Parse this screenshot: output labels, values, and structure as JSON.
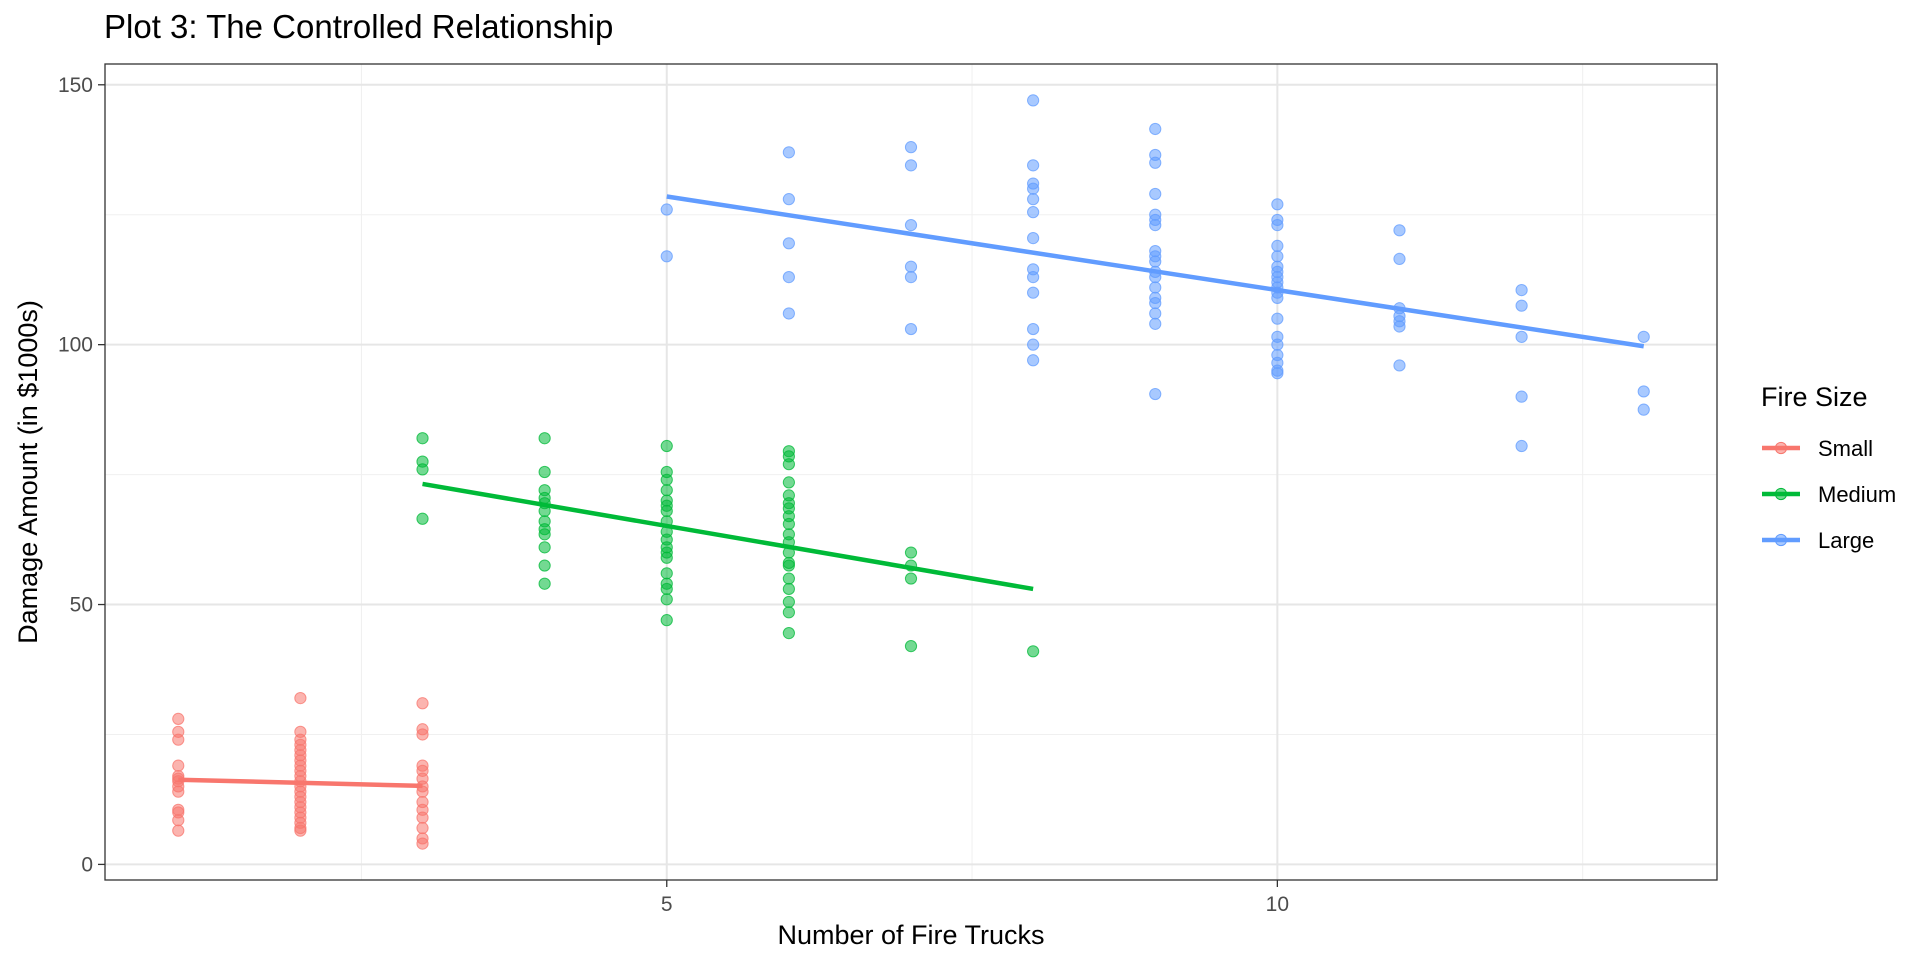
{
  "chart_data": {
    "type": "scatter",
    "title": "Plot 3: The Controlled Relationship",
    "xlabel": "Number of Fire Trucks",
    "ylabel": "Damage Amount (in $1000s)",
    "xlim": [
      0.4,
      13.6
    ],
    "ylim": [
      -3,
      154
    ],
    "x_ticks": [
      5,
      10
    ],
    "y_ticks": [
      0,
      50,
      100,
      150
    ],
    "grid": true,
    "legend": {
      "title": "Fire Size",
      "position": "right"
    },
    "series": [
      {
        "name": "Small",
        "color": "#F8766D",
        "points": [
          [
            1,
            28
          ],
          [
            1,
            25.5
          ],
          [
            1,
            24
          ],
          [
            1,
            19
          ],
          [
            1,
            17
          ],
          [
            1,
            16.5
          ],
          [
            1,
            16
          ],
          [
            1,
            15
          ],
          [
            1,
            14
          ],
          [
            1,
            10.5
          ],
          [
            1,
            10
          ],
          [
            1,
            8.5
          ],
          [
            1,
            6.5
          ],
          [
            2,
            32
          ],
          [
            2,
            25.5
          ],
          [
            2,
            24
          ],
          [
            2,
            23
          ],
          [
            2,
            22
          ],
          [
            2,
            21
          ],
          [
            2,
            20
          ],
          [
            2,
            19
          ],
          [
            2,
            18
          ],
          [
            2,
            17
          ],
          [
            2,
            16
          ],
          [
            2,
            15
          ],
          [
            2,
            14
          ],
          [
            2,
            13
          ],
          [
            2,
            12
          ],
          [
            2,
            11
          ],
          [
            2,
            10
          ],
          [
            2,
            9
          ],
          [
            2,
            8
          ],
          [
            2,
            7
          ],
          [
            2,
            6.5
          ],
          [
            3,
            31
          ],
          [
            3,
            26
          ],
          [
            3,
            25
          ],
          [
            3,
            19
          ],
          [
            3,
            18
          ],
          [
            3,
            16.5
          ],
          [
            3,
            15
          ],
          [
            3,
            14
          ],
          [
            3,
            12
          ],
          [
            3,
            10.5
          ],
          [
            3,
            9
          ],
          [
            3,
            7
          ],
          [
            3,
            5
          ],
          [
            3,
            4
          ]
        ],
        "fit": [
          [
            1,
            16.3
          ],
          [
            3,
            15.1
          ]
        ]
      },
      {
        "name": "Medium",
        "color": "#00BA38",
        "points": [
          [
            3,
            82
          ],
          [
            3,
            77.5
          ],
          [
            3,
            76
          ],
          [
            3,
            66.5
          ],
          [
            4,
            82
          ],
          [
            4,
            75.5
          ],
          [
            4,
            72
          ],
          [
            4,
            70.5
          ],
          [
            4,
            69.5
          ],
          [
            4,
            68
          ],
          [
            4,
            66
          ],
          [
            4,
            64.5
          ],
          [
            4,
            63.5
          ],
          [
            4,
            61
          ],
          [
            4,
            57.5
          ],
          [
            4,
            54
          ],
          [
            5,
            80.5
          ],
          [
            5,
            75.5
          ],
          [
            5,
            74
          ],
          [
            5,
            72
          ],
          [
            5,
            70
          ],
          [
            5,
            69
          ],
          [
            5,
            68
          ],
          [
            5,
            66
          ],
          [
            5,
            64
          ],
          [
            5,
            62.5
          ],
          [
            5,
            61
          ],
          [
            5,
            60
          ],
          [
            5,
            59
          ],
          [
            5,
            56
          ],
          [
            5,
            54
          ],
          [
            5,
            53
          ],
          [
            5,
            51
          ],
          [
            5,
            47
          ],
          [
            6,
            79.5
          ],
          [
            6,
            78.5
          ],
          [
            6,
            77
          ],
          [
            6,
            73.5
          ],
          [
            6,
            71
          ],
          [
            6,
            69.5
          ],
          [
            6,
            68.5
          ],
          [
            6,
            67
          ],
          [
            6,
            65.5
          ],
          [
            6,
            63.5
          ],
          [
            6,
            62
          ],
          [
            6,
            60
          ],
          [
            6,
            58
          ],
          [
            6,
            57.5
          ],
          [
            6,
            55
          ],
          [
            6,
            53
          ],
          [
            6,
            50.5
          ],
          [
            6,
            48.5
          ],
          [
            6,
            44.5
          ],
          [
            7,
            60
          ],
          [
            7,
            57.5
          ],
          [
            7,
            55
          ],
          [
            7,
            42
          ],
          [
            8,
            41
          ]
        ],
        "fit": [
          [
            3,
            73.2
          ],
          [
            8,
            53
          ]
        ]
      },
      {
        "name": "Large",
        "color": "#619CFF",
        "points": [
          [
            5,
            126
          ],
          [
            5,
            117
          ],
          [
            6,
            137
          ],
          [
            6,
            128
          ],
          [
            6,
            119.5
          ],
          [
            6,
            113
          ],
          [
            6,
            106
          ],
          [
            7,
            138
          ],
          [
            7,
            134.5
          ],
          [
            7,
            123
          ],
          [
            7,
            115
          ],
          [
            7,
            113
          ],
          [
            7,
            103
          ],
          [
            8,
            147
          ],
          [
            8,
            134.5
          ],
          [
            8,
            131
          ],
          [
            8,
            130
          ],
          [
            8,
            128
          ],
          [
            8,
            125.5
          ],
          [
            8,
            120.5
          ],
          [
            8,
            114.5
          ],
          [
            8,
            113
          ],
          [
            8,
            110
          ],
          [
            8,
            103
          ],
          [
            8,
            100
          ],
          [
            8,
            97
          ],
          [
            9,
            141.5
          ],
          [
            9,
            136.5
          ],
          [
            9,
            135
          ],
          [
            9,
            129
          ],
          [
            9,
            125
          ],
          [
            9,
            124
          ],
          [
            9,
            123
          ],
          [
            9,
            118
          ],
          [
            9,
            117
          ],
          [
            9,
            116
          ],
          [
            9,
            114
          ],
          [
            9,
            113
          ],
          [
            9,
            111
          ],
          [
            9,
            109
          ],
          [
            9,
            108
          ],
          [
            9,
            106
          ],
          [
            9,
            104
          ],
          [
            9,
            90.5
          ],
          [
            10,
            127
          ],
          [
            10,
            124
          ],
          [
            10,
            123
          ],
          [
            10,
            119
          ],
          [
            10,
            117
          ],
          [
            10,
            115
          ],
          [
            10,
            114
          ],
          [
            10,
            113
          ],
          [
            10,
            112
          ],
          [
            10,
            111
          ],
          [
            10,
            110
          ],
          [
            10,
            109
          ],
          [
            10,
            105
          ],
          [
            10,
            101.5
          ],
          [
            10,
            100
          ],
          [
            10,
            98
          ],
          [
            10,
            96.5
          ],
          [
            10,
            95
          ],
          [
            10,
            94.5
          ],
          [
            11,
            122
          ],
          [
            11,
            116.5
          ],
          [
            11,
            107
          ],
          [
            11,
            105.5
          ],
          [
            11,
            104.5
          ],
          [
            11,
            103.5
          ],
          [
            11,
            96
          ],
          [
            12,
            110.5
          ],
          [
            12,
            107.5
          ],
          [
            12,
            101.5
          ],
          [
            12,
            90
          ],
          [
            12,
            80.5
          ],
          [
            13,
            101.5
          ],
          [
            13,
            91
          ],
          [
            13,
            87.5
          ]
        ],
        "fit": [
          [
            5,
            128.5
          ],
          [
            13,
            99.7
          ]
        ]
      }
    ]
  }
}
